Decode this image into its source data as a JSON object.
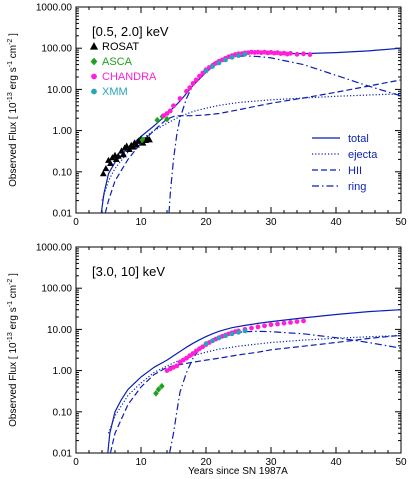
{
  "chart_data": [
    {
      "type": "line",
      "panel_label": "[0.5, 2.0] keV",
      "xlabel": "",
      "ylabel": "Observed Flux [ 10^-13 erg s^-1 cm^-2 ]",
      "x_ticks": [
        "0",
        "10",
        "20",
        "30",
        "40",
        "50"
      ],
      "y_ticks": [
        "0.01",
        "0.10",
        "1.00",
        "10.00",
        "100.00",
        "1000.00"
      ],
      "xlim": [
        0,
        50
      ],
      "ylim": [
        0.01,
        1000
      ],
      "yscale": "log",
      "legend_position": "lower-right",
      "series": [
        {
          "name": "total",
          "style": "solid",
          "color": "#0a1fb5",
          "x": [
            3.9,
            4.3,
            5,
            6,
            8,
            10,
            12,
            13,
            14,
            15,
            16,
            17,
            18,
            19,
            20,
            21,
            22,
            23,
            24,
            25,
            26,
            27,
            28,
            30,
            32,
            35,
            40,
            45,
            50
          ],
          "y": [
            0.01,
            0.03,
            0.09,
            0.17,
            0.38,
            0.72,
            1.3,
            1.8,
            2.6,
            3.6,
            5.2,
            8,
            12.5,
            18,
            26,
            35,
            46,
            57,
            66,
            72,
            75,
            76,
            76,
            75,
            74,
            74,
            78,
            86,
            100
          ]
        },
        {
          "name": "ejecta",
          "style": "dotted",
          "color": "#0a1fb5",
          "x": [
            4,
            5,
            6,
            8,
            10,
            12,
            14,
            16,
            18,
            20,
            22,
            25,
            30,
            35,
            40,
            45,
            50
          ],
          "y": [
            0.02,
            0.06,
            0.12,
            0.3,
            0.6,
            1.0,
            1.5,
            2.2,
            2.9,
            3.5,
            4.1,
            4.8,
            5.6,
            6.2,
            6.8,
            7.3,
            7.8
          ]
        },
        {
          "name": "HII",
          "style": "dashed",
          "color": "#0a1fb5",
          "x": [
            4.5,
            5,
            6,
            8,
            10,
            12,
            13,
            14,
            15,
            16,
            18,
            20,
            22,
            25,
            28,
            30,
            32,
            35,
            40,
            45,
            50
          ],
          "y": [
            0.01,
            0.02,
            0.06,
            0.2,
            0.5,
            1.0,
            1.4,
            1.9,
            2.2,
            2.3,
            2.3,
            2.4,
            2.6,
            3.2,
            4.0,
            4.6,
            5.2,
            6.2,
            8.5,
            12,
            17
          ]
        },
        {
          "name": "ring",
          "style": "dashdot",
          "color": "#0a1fb5",
          "x": [
            14.3,
            14.5,
            15,
            15.5,
            16,
            17,
            18,
            19,
            20,
            21,
            22,
            24,
            26,
            28,
            30,
            35,
            40,
            45,
            50
          ],
          "y": [
            0.01,
            0.03,
            0.2,
            0.8,
            2,
            6,
            13,
            22,
            32,
            42,
            52,
            62,
            65,
            63,
            58,
            40,
            22,
            12,
            7
          ]
        }
      ],
      "observations": [
        {
          "name": "ROSAT",
          "marker": "triangle",
          "color": "#000000",
          "x": [
            4.2,
            4.6,
            5,
            5.3,
            5.6,
            6,
            6.2,
            6.5,
            7,
            7.3,
            7.5,
            7.8,
            8.2,
            8.5,
            8.8,
            9,
            9.3,
            9.6,
            10,
            10.3,
            10.7,
            11,
            11.3
          ],
          "y": [
            0.09,
            0.12,
            0.19,
            0.16,
            0.22,
            0.25,
            0.2,
            0.24,
            0.32,
            0.26,
            0.38,
            0.42,
            0.35,
            0.44,
            0.4,
            0.5,
            0.45,
            0.55,
            0.62,
            0.5,
            0.58,
            0.64,
            0.6
          ]
        },
        {
          "name": "ASCA",
          "marker": "diamond",
          "color": "#1fa01f",
          "x": [
            10.2,
            12.5,
            13.3,
            14
          ],
          "y": [
            0.6,
            1.8,
            2.2,
            1.9
          ]
        },
        {
          "name": "CHANDRA",
          "marker": "circle",
          "color": "#ff1fd9",
          "x": [
            13.5,
            14,
            14.5,
            15,
            16,
            17,
            17.5,
            18,
            18.5,
            19,
            19.5,
            20,
            20.5,
            21,
            21.5,
            22,
            22.5,
            23,
            23.5,
            24,
            24.5,
            25,
            25.5,
            26,
            26.5,
            27,
            27.5,
            28,
            28.5,
            29,
            29.5,
            30,
            30.5,
            31,
            31.5,
            32,
            32.5,
            33,
            34,
            35,
            36
          ],
          "y": [
            2.3,
            2.6,
            3,
            4,
            6,
            9,
            11,
            14,
            17,
            21,
            25,
            30,
            34,
            38,
            43,
            48,
            52,
            57,
            62,
            66,
            70,
            73,
            74,
            77,
            78,
            80,
            79,
            80,
            78,
            80,
            77,
            79,
            76,
            78,
            74,
            76,
            72,
            75,
            71,
            73,
            70
          ]
        },
        {
          "name": "XMM",
          "marker": "circle",
          "color": "#2aa3b8",
          "x": [
            20,
            21,
            22,
            23,
            24,
            25,
            26
          ],
          "y": [
            28,
            36,
            44,
            52,
            60,
            66,
            72
          ]
        }
      ]
    },
    {
      "type": "line",
      "panel_label": "[3.0, 10] keV",
      "xlabel": "Years since SN 1987A",
      "ylabel": "Observed Flux [ 10^-13 erg s^-1 cm^-2 ]",
      "x_ticks": [
        "0",
        "10",
        "20",
        "30",
        "40",
        "50"
      ],
      "y_ticks": [
        "0.01",
        "0.10",
        "1.00",
        "10.00",
        "100.00",
        "1000.00"
      ],
      "xlim": [
        0,
        50
      ],
      "ylim": [
        0.01,
        1000
      ],
      "yscale": "log",
      "series": [
        {
          "name": "total",
          "style": "solid",
          "color": "#0a1fb5",
          "x": [
            4.9,
            5.2,
            6,
            7,
            8,
            10,
            12,
            14,
            15,
            16,
            17,
            18,
            19,
            20,
            21,
            22,
            23,
            24,
            26,
            28,
            30,
            35,
            40,
            45,
            50
          ],
          "y": [
            0.01,
            0.03,
            0.1,
            0.2,
            0.35,
            0.7,
            1.2,
            1.8,
            2.3,
            2.9,
            3.7,
            4.6,
            5.6,
            6.7,
            7.8,
            9,
            10,
            11,
            12.5,
            14,
            15.5,
            19,
            23,
            27,
            30
          ]
        },
        {
          "name": "ejecta",
          "style": "dotted",
          "color": "#0a1fb5",
          "x": [
            5,
            6,
            8,
            10,
            12,
            14,
            16,
            18,
            20,
            22,
            25,
            30,
            35,
            40,
            45,
            50
          ],
          "y": [
            0.03,
            0.08,
            0.25,
            0.5,
            0.9,
            1.3,
            1.8,
            2.3,
            2.8,
            3.3,
            3.9,
            4.8,
            5.5,
            6.1,
            6.6,
            7.1
          ]
        },
        {
          "name": "HII",
          "style": "dashed",
          "color": "#0a1fb5",
          "x": [
            5.3,
            6,
            8,
            10,
            12,
            14,
            16,
            18,
            20,
            22,
            25,
            28,
            30,
            35,
            40,
            45,
            50
          ],
          "y": [
            0.01,
            0.03,
            0.15,
            0.4,
            0.8,
            1.2,
            1.4,
            1.6,
            1.8,
            2.0,
            2.4,
            2.8,
            3.2,
            3.9,
            4.8,
            6,
            7.2
          ]
        },
        {
          "name": "ring",
          "style": "dashdot",
          "color": "#0a1fb5",
          "x": [
            14.4,
            15,
            15.5,
            16,
            17,
            18,
            19,
            20,
            21,
            22,
            24,
            26,
            28,
            30,
            35,
            40,
            45,
            50
          ],
          "y": [
            0.01,
            0.03,
            0.1,
            0.3,
            0.9,
            2,
            3.3,
            4.6,
            5.8,
            6.8,
            8.2,
            8.8,
            9,
            8.8,
            7.8,
            6.3,
            4.8,
            3.5
          ]
        }
      ],
      "observations": [
        {
          "name": "ASCA",
          "marker": "diamond",
          "color": "#1fa01f",
          "x": [
            12.3,
            12.7,
            13.2
          ],
          "y": [
            0.28,
            0.35,
            0.42
          ]
        },
        {
          "name": "CHANDRA",
          "marker": "circle",
          "color": "#ff1fd9",
          "x": [
            14,
            14.5,
            15,
            15.5,
            16,
            16.5,
            17,
            17.5,
            18,
            18.5,
            19,
            19.5,
            20,
            20.5,
            21,
            21.5,
            22,
            22.5,
            23,
            23.5,
            24,
            24.5,
            25,
            26,
            27,
            28,
            29,
            30,
            31,
            32,
            33,
            34,
            35
          ],
          "y": [
            1.0,
            1.1,
            1.2,
            1.3,
            1.6,
            1.8,
            2.0,
            2.3,
            2.6,
            3.0,
            3.4,
            3.8,
            4.3,
            4.8,
            5.3,
            5.8,
            6.3,
            6.8,
            7.3,
            7.8,
            8.3,
            8.8,
            9.2,
            10,
            10.8,
            11.5,
            12.2,
            13,
            13.5,
            14.2,
            14.8,
            15.5,
            16
          ]
        },
        {
          "name": "XMM",
          "marker": "circle",
          "color": "#2aa3b8",
          "x": [
            20,
            21,
            22,
            23,
            24,
            25,
            26
          ],
          "y": [
            4.5,
            5.3,
            6.2,
            7.0,
            7.8,
            8.5,
            9.2
          ]
        }
      ]
    }
  ]
}
